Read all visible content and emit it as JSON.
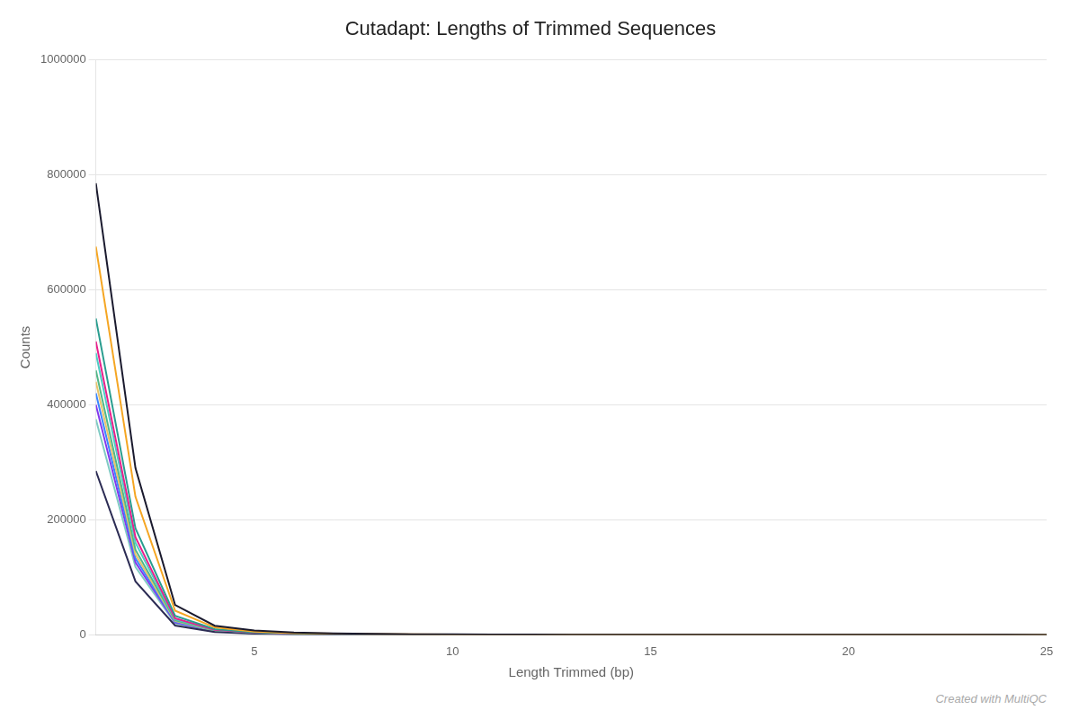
{
  "chart_data": {
    "type": "line",
    "title": "Cutadapt: Lengths of Trimmed Sequences",
    "x_label": "Length Trimmed (bp)",
    "y_label": "Counts",
    "annotations": [
      "Created with MultiQC"
    ],
    "xlim": [
      1,
      25
    ],
    "ylim": [
      0,
      1000000
    ],
    "xticks": [
      5,
      10,
      15,
      20,
      25
    ],
    "yticks": [
      0,
      200000,
      400000,
      600000,
      800000,
      1000000
    ],
    "grid": "y",
    "x": [
      1,
      2,
      3,
      4,
      5,
      6,
      7,
      8,
      9,
      10,
      11,
      12,
      13,
      14,
      15,
      16,
      17,
      18,
      19,
      20,
      21,
      22,
      23,
      24,
      25
    ],
    "series": [
      {
        "color": "#1a1a2e",
        "values": [
          785000,
          290000,
          52000,
          16000,
          7500,
          4000,
          2600,
          1700,
          1200,
          900,
          680,
          530,
          420,
          330,
          265,
          210,
          170,
          140,
          115,
          95,
          78,
          64,
          53,
          44,
          36
        ]
      },
      {
        "color": "#f5a623",
        "values": [
          675000,
          240000,
          42000,
          13000,
          5800,
          3100,
          2000,
          1300,
          920,
          690,
          520,
          405,
          320,
          252,
          202,
          161,
          130,
          106,
          88,
          73,
          60,
          50,
          41,
          34,
          28
        ]
      },
      {
        "color": "#2a9d8f",
        "values": [
          550000,
          185000,
          33000,
          10000,
          4600,
          2450,
          1580,
          1030,
          730,
          547,
          412,
          321,
          254,
          200,
          160,
          128,
          103,
          84,
          69,
          57,
          47,
          39,
          32,
          27,
          22
        ]
      },
      {
        "color": "#e91e8c",
        "values": [
          510000,
          170000,
          29000,
          8800,
          4000,
          2130,
          1375,
          897,
          635,
          476,
          359,
          280,
          221,
          174,
          139,
          111,
          90,
          73,
          60,
          50,
          41,
          34,
          28,
          23,
          19
        ]
      },
      {
        "color": "#4ecdc4",
        "values": [
          490000,
          160000,
          27500,
          8300,
          3750,
          1990,
          1285,
          838,
          593,
          445,
          335,
          261,
          206,
          163,
          130,
          104,
          84,
          68,
          56,
          46,
          38,
          31,
          26,
          21,
          18
        ]
      },
      {
        "color": "#2c2c54",
        "values": [
          285000,
          93000,
          16200,
          4900,
          2230,
          1185,
          765,
          499,
          353,
          265,
          200,
          156,
          123,
          97,
          78,
          62,
          50,
          41,
          34,
          28,
          23,
          19,
          16,
          13,
          11
        ]
      },
      {
        "color": "#52b788",
        "values": [
          460000,
          148000,
          25500,
          7700,
          3480,
          1850,
          1194,
          779,
          551,
          413,
          311,
          243,
          191,
          151,
          120,
          96,
          78,
          63,
          52,
          43,
          35,
          29,
          24,
          20,
          16
        ]
      },
      {
        "color": "#e9c46a",
        "values": [
          440000,
          140000,
          24200,
          7300,
          3300,
          1750,
          1129,
          737,
          521,
          390,
          295,
          230,
          181,
          143,
          114,
          91,
          74,
          60,
          49,
          41,
          34,
          28,
          23,
          19,
          15
        ]
      },
      {
        "color": "#3a86ff",
        "values": [
          420000,
          133000,
          23000,
          6900,
          3100,
          1650,
          1065,
          695,
          492,
          369,
          279,
          217,
          171,
          135,
          108,
          86,
          70,
          56,
          46,
          38,
          31,
          26,
          21,
          18,
          14
        ]
      },
      {
        "color": "#8338ec",
        "values": [
          400000,
          126000,
          21500,
          6400,
          2880,
          1530,
          987,
          644,
          455,
          341,
          258,
          201,
          158,
          125,
          100,
          80,
          64,
          52,
          43,
          35,
          29,
          24,
          20,
          16,
          13
        ]
      },
      {
        "color": "#80cbc4",
        "values": [
          375000,
          118000,
          20000,
          5900,
          2650,
          1400,
          904,
          590,
          417,
          313,
          236,
          184,
          145,
          115,
          92,
          73,
          59,
          48,
          39,
          32,
          26,
          22,
          18,
          15,
          12
        ]
      }
    ]
  }
}
